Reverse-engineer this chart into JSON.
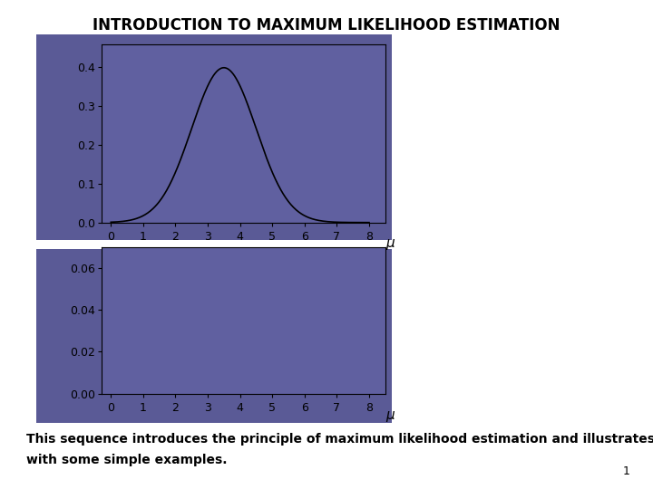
{
  "title": "INTRODUCTION TO MAXIMUM LIKELIHOOD ESTIMATION",
  "panel1_color": "#5a5a96",
  "panel2_color": "#5a5a96",
  "axes_face_color": "#6060a0",
  "line_color": "#000000",
  "text_color": "#000000",
  "mu_label": "μ",
  "upper_yticks": [
    0.0,
    0.1,
    0.2,
    0.3,
    0.4
  ],
  "upper_ylim": [
    0.0,
    0.46
  ],
  "lower_yticks": [
    0.0,
    0.02,
    0.04,
    0.06
  ],
  "lower_ylim": [
    0.0,
    0.07
  ],
  "xticks": [
    0,
    1,
    2,
    3,
    4,
    5,
    6,
    7,
    8
  ],
  "xlim": [
    -0.3,
    8.5
  ],
  "gauss_mu": 3.5,
  "gauss_sigma": 1.0,
  "subtitle_line1": "This sequence introduces the principle of maximum likelihood estimation and illustrates it",
  "subtitle_line2": "with some simple examples.",
  "subtitle_fontsize": 10,
  "title_fontsize": 12,
  "page_num": "1",
  "tick_fontsize": 9,
  "mu_fontsize": 11,
  "border_color": "#aaaaaa"
}
